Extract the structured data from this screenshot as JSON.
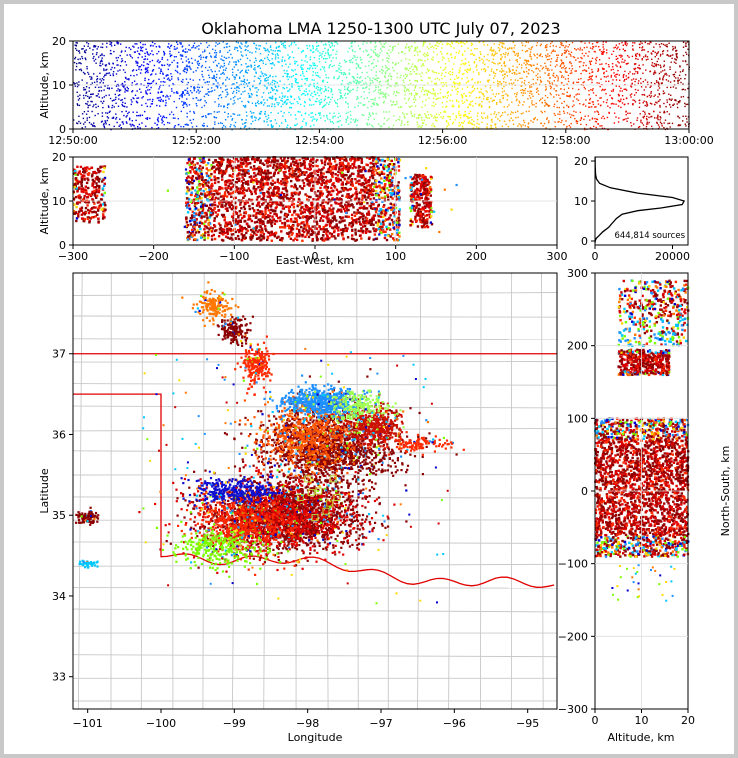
{
  "title": "Oklahoma LMA 1250-1300 UTC July 07, 2023",
  "source_count_label": "644,814 sources",
  "colors": {
    "state_border": "#e00000",
    "county_lines": "#c8c8c8",
    "box": "#bcd63a",
    "hist_line": "#000000"
  },
  "chart_data": [
    {
      "panel": "time-altitude",
      "type": "scatter",
      "xlabel": "",
      "ylabel": "Altitude, km",
      "xlim": [
        "12:50:00",
        "13:00:00"
      ],
      "ylim": [
        0,
        20
      ],
      "xticks": [
        "12:50:00",
        "12:52:00",
        "12:54:00",
        "12:56:00",
        "12:58:00",
        "13:00:00"
      ],
      "yticks": [
        "0",
        "10",
        "20"
      ],
      "colormap": "jet (by time)",
      "dense_altitude_band_km": [
        5,
        20
      ]
    },
    {
      "panel": "east-west-altitude",
      "type": "scatter",
      "xlabel": "East-West, km",
      "ylabel": "Altitude, km",
      "xlim": [
        -300,
        300
      ],
      "ylim": [
        0,
        20
      ],
      "xticks": [
        "−300",
        "−200",
        "−100",
        "0",
        "100",
        "200",
        "300"
      ],
      "yticks": [
        "0",
        "10",
        "20"
      ],
      "clusters": [
        {
          "x_range": [
            -300,
            -260
          ],
          "alt_range": [
            5,
            18
          ]
        },
        {
          "x_range": [
            -160,
            105
          ],
          "alt_range": [
            1,
            20
          ]
        },
        {
          "x_range": [
            118,
            145
          ],
          "alt_range": [
            4,
            16
          ]
        }
      ]
    },
    {
      "panel": "altitude-histogram",
      "type": "line",
      "xlabel": "",
      "ylabel": "",
      "xlim": [
        0,
        24000
      ],
      "ylim": [
        0,
        20
      ],
      "xticks": [
        "0",
        "20000"
      ],
      "yticks": [
        "0",
        "10",
        "20"
      ],
      "x": [
        0,
        80,
        300,
        900,
        2000,
        3500,
        4500,
        5500,
        7000,
        11000,
        17000,
        22500,
        23000,
        20000,
        11000,
        4000,
        1200,
        400,
        150,
        60,
        20
      ],
      "y": [
        0.5,
        1,
        1.5,
        2,
        3,
        4,
        5,
        6,
        7,
        7.8,
        8.4,
        9.2,
        10,
        10.8,
        11.8,
        13,
        14,
        15,
        16,
        18,
        20
      ]
    },
    {
      "panel": "plan-view",
      "type": "scatter",
      "xlabel": "Longitude",
      "ylabel": "Latitude",
      "xlim": [
        -101.2,
        -94.6
      ],
      "ylim": [
        32.6,
        38
      ],
      "xticks": [
        "−101",
        "−100",
        "−99",
        "−98",
        "−97",
        "−96",
        "−95"
      ],
      "yticks": [
        "33",
        "34",
        "35",
        "36",
        "37"
      ],
      "clusters": [
        {
          "lon": -98.3,
          "lat": 35.0,
          "sx": 0.5,
          "sy": 0.2,
          "n": 2000,
          "color": "#8b0000"
        },
        {
          "lon": -98.4,
          "lat": 35.0,
          "sx": 0.55,
          "sy": 0.22,
          "n": 900,
          "color": "#e00000"
        },
        {
          "lon": -98.9,
          "lat": 34.9,
          "sx": 0.35,
          "sy": 0.18,
          "n": 500,
          "color": "#ff2a00"
        },
        {
          "lon": -97.7,
          "lat": 35.85,
          "sx": 0.45,
          "sy": 0.25,
          "n": 1600,
          "color": "#8b0000"
        },
        {
          "lon": -98.0,
          "lat": 35.95,
          "sx": 0.3,
          "sy": 0.2,
          "n": 600,
          "color": "#ff5500"
        },
        {
          "lon": -97.1,
          "lat": 36.1,
          "sx": 0.2,
          "sy": 0.12,
          "n": 400,
          "color": "#cc1100"
        },
        {
          "lon": -97.8,
          "lat": 36.4,
          "sx": 0.25,
          "sy": 0.09,
          "n": 600,
          "color": "#1e90ff"
        },
        {
          "lon": -97.3,
          "lat": 36.35,
          "sx": 0.2,
          "sy": 0.1,
          "n": 220,
          "color": "#a0ff50"
        },
        {
          "lon": -99.0,
          "lat": 35.3,
          "sx": 0.3,
          "sy": 0.08,
          "n": 300,
          "color": "#1010d0"
        },
        {
          "lon": -99.2,
          "lat": 34.6,
          "sx": 0.3,
          "sy": 0.12,
          "n": 300,
          "color": "#7cfc00"
        },
        {
          "lon": -98.7,
          "lat": 36.85,
          "sx": 0.1,
          "sy": 0.12,
          "n": 220,
          "color": "#ff2a00"
        },
        {
          "lon": -99.0,
          "lat": 37.3,
          "sx": 0.1,
          "sy": 0.08,
          "n": 150,
          "color": "#8b0000"
        },
        {
          "lon": -99.3,
          "lat": 37.6,
          "sx": 0.12,
          "sy": 0.1,
          "n": 150,
          "color": "#ff7700"
        },
        {
          "lon": -96.5,
          "lat": 35.87,
          "sx": 0.2,
          "sy": 0.05,
          "n": 120,
          "color": "#ff2a00"
        },
        {
          "lon": -101.0,
          "lat": 34.97,
          "sx": 0.08,
          "sy": 0.05,
          "n": 90,
          "color": "#8b0000"
        },
        {
          "lon": -101.0,
          "lat": 34.4,
          "sx": 0.06,
          "sy": 0.02,
          "n": 40,
          "color": "#00c8ff"
        }
      ]
    },
    {
      "panel": "altitude-north-south",
      "type": "scatter",
      "xlabel": "Altitude, km",
      "ylabel": "North-South, km",
      "xlim": [
        0,
        20
      ],
      "ylim": [
        -300,
        300
      ],
      "xticks": [
        "0",
        "10",
        "20"
      ],
      "yticks": [
        "−300",
        "−200",
        "−100",
        "0",
        "100",
        "200",
        "300"
      ],
      "clusters": [
        {
          "ns_range": [
            -90,
            100
          ],
          "alt_range": [
            0,
            20
          ]
        },
        {
          "ns_range": [
            160,
            195
          ],
          "alt_range": [
            5,
            16
          ]
        },
        {
          "ns_range": [
            200,
            290
          ],
          "alt_range": [
            5,
            20
          ]
        }
      ]
    }
  ]
}
